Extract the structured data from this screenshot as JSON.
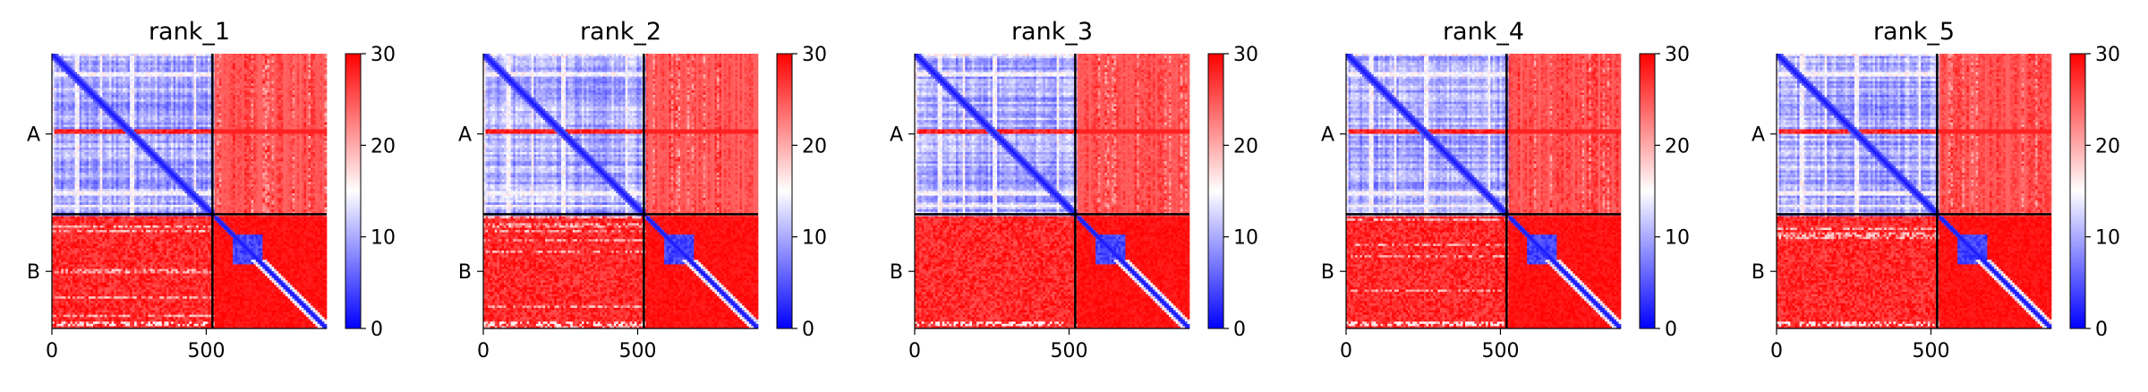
{
  "chart_data": [
    {
      "type": "heatmap",
      "title": "rank_1",
      "chain_labels": [
        "A",
        "B"
      ],
      "chain_boundary": 520,
      "length": 890,
      "xticks": [
        0,
        500
      ],
      "colorbar": {
        "cmap": "bwr",
        "range": [
          0,
          30
        ],
        "ticks": [
          0,
          10,
          20,
          30
        ],
        "low_color": "#0000ff",
        "mid_color": "#ffffff",
        "high_color": "#ff0000"
      },
      "domain_block": [
        580,
        680
      ],
      "variant": 0
    },
    {
      "type": "heatmap",
      "title": "rank_2",
      "chain_labels": [
        "A",
        "B"
      ],
      "chain_boundary": 520,
      "length": 890,
      "xticks": [
        0,
        500
      ],
      "colorbar": {
        "cmap": "bwr",
        "range": [
          0,
          30
        ],
        "ticks": [
          0,
          10,
          20,
          30
        ],
        "low_color": "#0000ff",
        "mid_color": "#ffffff",
        "high_color": "#ff0000"
      },
      "domain_block": [
        580,
        680
      ],
      "variant": 1
    },
    {
      "type": "heatmap",
      "title": "rank_3",
      "chain_labels": [
        "A",
        "B"
      ],
      "chain_boundary": 520,
      "length": 890,
      "xticks": [
        0,
        500
      ],
      "colorbar": {
        "cmap": "bwr",
        "range": [
          0,
          30
        ],
        "ticks": [
          0,
          10,
          20,
          30
        ],
        "low_color": "#0000ff",
        "mid_color": "#ffffff",
        "high_color": "#ff0000"
      },
      "domain_block": [
        580,
        680
      ],
      "variant": 2
    },
    {
      "type": "heatmap",
      "title": "rank_4",
      "chain_labels": [
        "A",
        "B"
      ],
      "chain_boundary": 520,
      "length": 890,
      "xticks": [
        0,
        500
      ],
      "colorbar": {
        "cmap": "bwr",
        "range": [
          0,
          30
        ],
        "ticks": [
          0,
          10,
          20,
          30
        ],
        "low_color": "#0000ff",
        "mid_color": "#ffffff",
        "high_color": "#ff0000"
      },
      "domain_block": [
        580,
        680
      ],
      "variant": 3
    },
    {
      "type": "heatmap",
      "title": "rank_5",
      "chain_labels": [
        "A",
        "B"
      ],
      "chain_boundary": 520,
      "length": 890,
      "xticks": [
        0,
        500
      ],
      "colorbar": {
        "cmap": "bwr",
        "range": [
          0,
          30
        ],
        "ticks": [
          0,
          10,
          20,
          30
        ],
        "low_color": "#0000ff",
        "mid_color": "#ffffff",
        "high_color": "#ff0000"
      },
      "domain_block": [
        580,
        680
      ],
      "variant": 4
    }
  ]
}
